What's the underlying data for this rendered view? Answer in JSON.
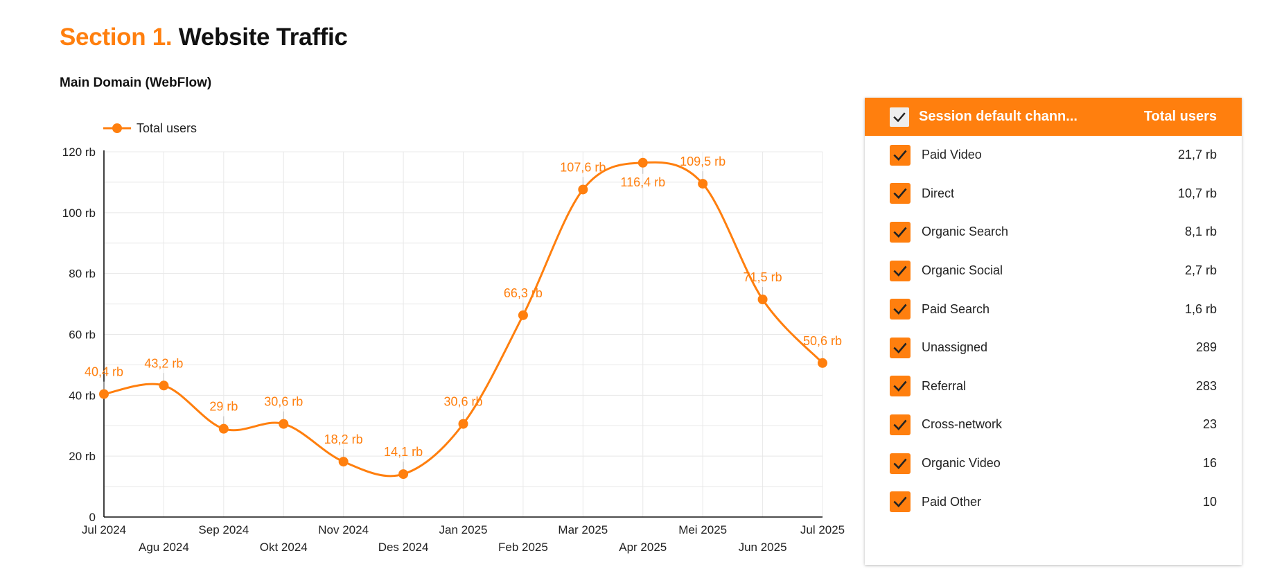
{
  "page": {
    "section_number": "Section 1.",
    "section_name": "Website Traffic",
    "subtitle": "Main Domain (WebFlow)"
  },
  "colors": {
    "accent": "#ff7f0e",
    "grid": "#e8e8e8",
    "axis": "#111111"
  },
  "chart_data": {
    "type": "line",
    "title": "",
    "xlabel": "",
    "ylabel": "",
    "legend": "top-left",
    "grid": true,
    "smooth": true,
    "ylim": [
      0,
      120
    ],
    "y_ticks": [
      0,
      20,
      40,
      60,
      80,
      100,
      120
    ],
    "y_tick_labels": [
      "0",
      "20 rb",
      "40 rb",
      "60 rb",
      "80 rb",
      "100 rb",
      "120 rb"
    ],
    "categories": [
      "Jul 2024",
      "Agu 2024",
      "Sep 2024",
      "Okt 2024",
      "Nov 2024",
      "Des 2024",
      "Jan 2025",
      "Feb 2025",
      "Mar 2025",
      "Apr 2025",
      "Mei 2025",
      "Jun 2025",
      "Jul 2025"
    ],
    "series": [
      {
        "name": "Total users",
        "color": "#ff7f0e",
        "values": [
          40.4,
          43.2,
          29,
          30.6,
          18.2,
          14.1,
          30.6,
          66.3,
          107.6,
          116.4,
          109.5,
          71.5,
          50.6
        ],
        "labels": [
          "40,4 rb",
          "43,2 rb",
          "29 rb",
          "30,6 rb",
          "18,2 rb",
          "14,1 rb",
          "30,6 rb",
          "66,3 rb",
          "107,6 rb",
          "116,4 rb",
          "109,5 rb",
          "71,5 rb",
          "50,6 rb"
        ]
      }
    ]
  },
  "table": {
    "header_label": "Session default chann...",
    "header_metric": "Total users",
    "header_checked": true,
    "rows": [
      {
        "label": "Paid Video",
        "value": "21,7 rb",
        "checked": true
      },
      {
        "label": "Direct",
        "value": "10,7 rb",
        "checked": true
      },
      {
        "label": "Organic Search",
        "value": "8,1 rb",
        "checked": true
      },
      {
        "label": "Organic Social",
        "value": "2,7 rb",
        "checked": true
      },
      {
        "label": "Paid Search",
        "value": "1,6 rb",
        "checked": true
      },
      {
        "label": "Unassigned",
        "value": "289",
        "checked": true
      },
      {
        "label": "Referral",
        "value": "283",
        "checked": true
      },
      {
        "label": "Cross-network",
        "value": "23",
        "checked": true
      },
      {
        "label": "Organic Video",
        "value": "16",
        "checked": true
      },
      {
        "label": "Paid Other",
        "value": "10",
        "checked": true
      }
    ]
  }
}
